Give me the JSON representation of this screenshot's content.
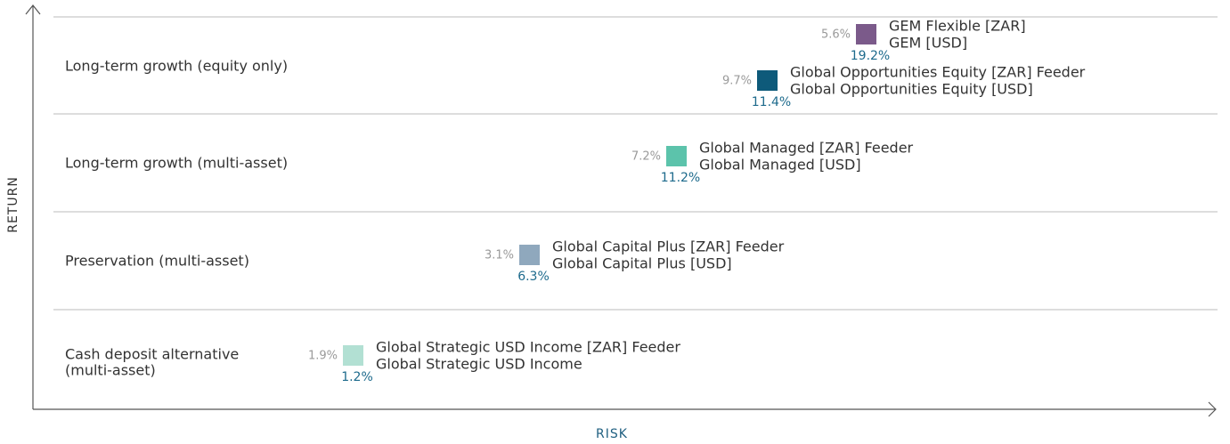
{
  "axes": {
    "y_label": "RETURN",
    "x_label": "RISK"
  },
  "bands": [
    {
      "label_lines": [
        "Long-term growth (equity only)"
      ]
    },
    {
      "label_lines": [
        "Long-term growth (multi-asset)"
      ]
    },
    {
      "label_lines": [
        "Preservation (multi-asset)"
      ]
    },
    {
      "label_lines": [
        "Cash deposit alternative",
        "(multi-asset)"
      ]
    }
  ],
  "funds": [
    {
      "names": [
        "GEM Flexible [ZAR]",
        "GEM [USD]"
      ],
      "grey_value": "5.6%",
      "blue_value": "19.2%",
      "color": "#7b5a8a"
    },
    {
      "names": [
        "Global Opportunities Equity [ZAR] Feeder",
        "Global Opportunities Equity [USD]"
      ],
      "grey_value": "9.7%",
      "blue_value": "11.4%",
      "color": "#0e5a7a"
    },
    {
      "names": [
        "Global Managed [ZAR] Feeder",
        "Global Managed [USD]"
      ],
      "grey_value": "7.2%",
      "blue_value": "11.2%",
      "color": "#5cc3ab"
    },
    {
      "names": [
        "Global Capital Plus [ZAR] Feeder",
        "Global Capital Plus [USD]"
      ],
      "grey_value": "3.1%",
      "blue_value": "6.3%",
      "color": "#8fa8bd"
    },
    {
      "names": [
        "Global Strategic USD Income [ZAR] Feeder",
        "Global Strategic USD Income"
      ],
      "grey_value": "1.9%",
      "blue_value": "1.2%",
      "color": "#b2e0d3"
    }
  ]
}
